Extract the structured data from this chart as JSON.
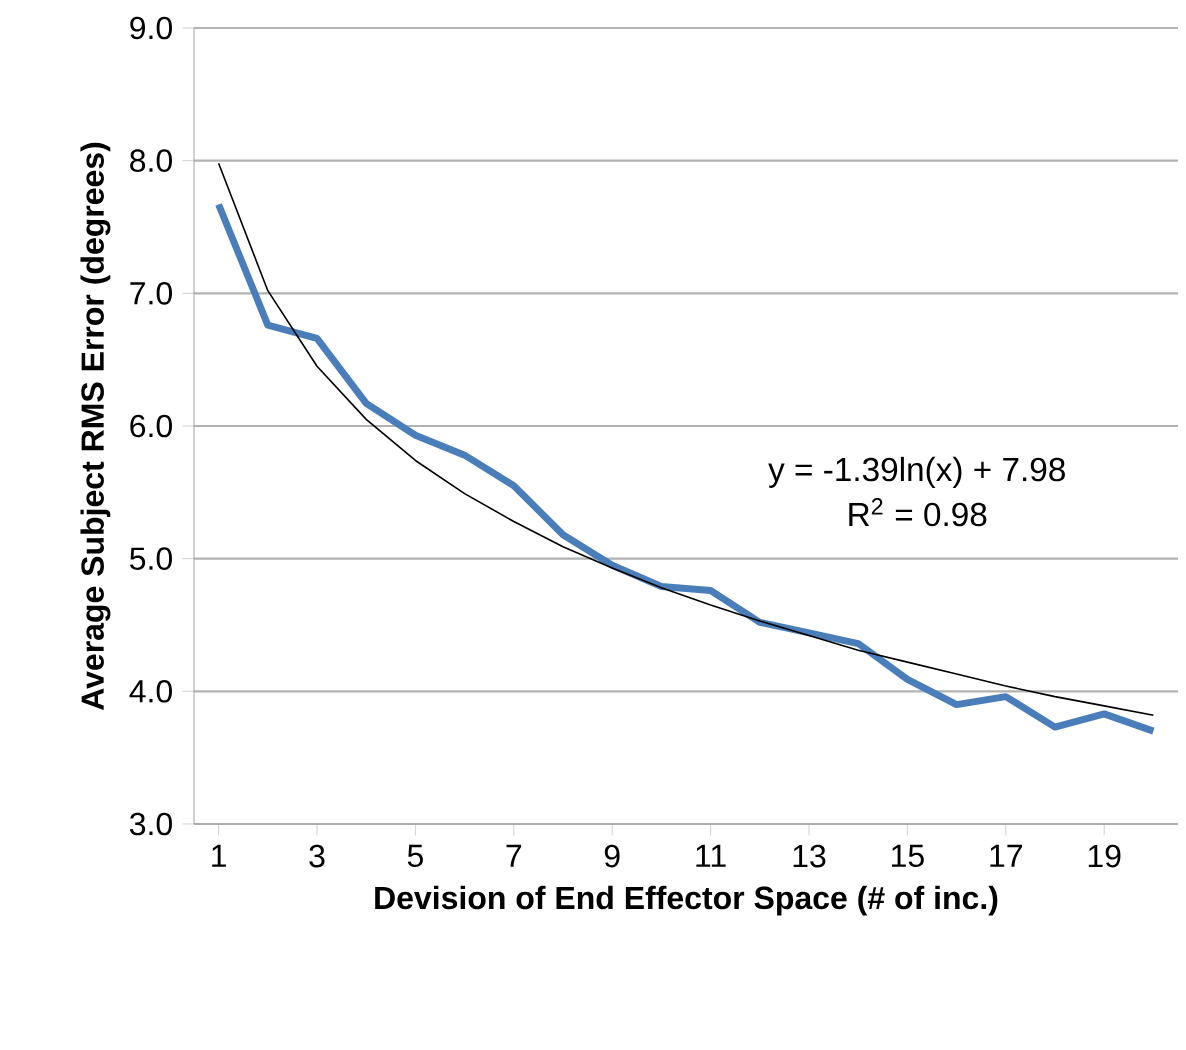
{
  "chart_data": {
    "type": "line",
    "xlabel": "Devision of End Effector Space (# of inc.)",
    "ylabel": "Average Subject RMS Error (degrees)",
    "x": [
      1,
      2,
      3,
      4,
      5,
      6,
      7,
      8,
      9,
      10,
      11,
      12,
      13,
      14,
      15,
      16,
      17,
      18,
      19,
      20
    ],
    "series": [
      {
        "color": "#4a7ebb",
        "values": [
          7.67,
          6.76,
          6.66,
          6.17,
          5.93,
          5.78,
          5.55,
          5.18,
          4.95,
          4.79,
          4.76,
          4.52,
          4.44,
          4.36,
          4.09,
          3.9,
          3.96,
          3.73,
          3.83,
          3.7
        ]
      },
      {
        "type": "line",
        "color": "#000000",
        "x": [
          1,
          2,
          3,
          4,
          5,
          6,
          7,
          8,
          9,
          10,
          11,
          12,
          13,
          14,
          15,
          16,
          17,
          18,
          19,
          20
        ],
        "values": [
          7.98,
          7.02,
          6.45,
          6.05,
          5.74,
          5.49,
          5.28,
          5.09,
          4.93,
          4.78,
          4.65,
          4.53,
          4.42,
          4.31,
          4.22,
          4.13,
          4.04,
          3.96,
          3.89,
          3.82
        ]
      }
    ],
    "xlim": [
      0.5,
      20.5
    ],
    "xticks": [
      1,
      3,
      5,
      7,
      9,
      11,
      13,
      15,
      17,
      19
    ],
    "ylim": [
      3.0,
      9.0
    ],
    "yticks": [
      {
        "value": 3,
        "label": "3.0"
      },
      {
        "value": 4,
        "label": "4.0"
      },
      {
        "value": 5,
        "label": "5.0"
      },
      {
        "value": 6,
        "label": "6.0"
      },
      {
        "value": 7,
        "label": "7.0"
      },
      {
        "value": 8,
        "label": "8.0"
      },
      {
        "value": 9,
        "label": "9.0"
      }
    ],
    "grid": "y",
    "legend": false,
    "marker": "none",
    "line_style": "solid",
    "annotations": [
      "y = -1.39ln(x) + 7.98",
      "R$^{2}$ = 0.98"
    ]
  }
}
